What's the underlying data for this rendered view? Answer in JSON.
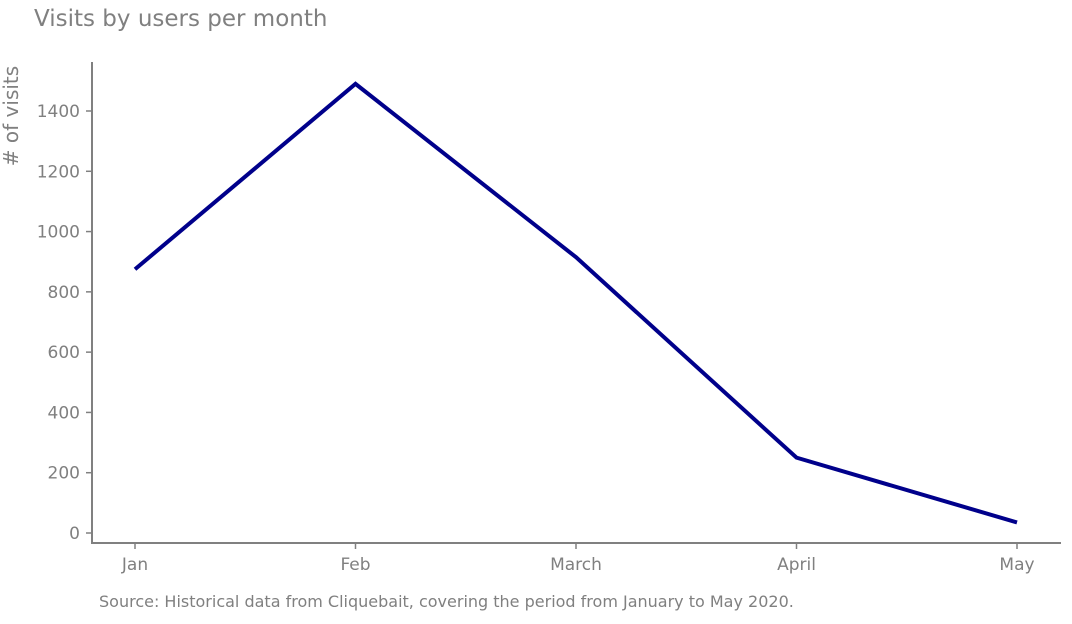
{
  "chart_data": {
    "type": "line",
    "title": "Visits by users per month",
    "xlabel": "",
    "ylabel": "# of visits",
    "categories": [
      "Jan",
      "Feb",
      "March",
      "April",
      "May"
    ],
    "series": [
      {
        "values": [
          875,
          1490,
          915,
          250,
          35
        ]
      }
    ],
    "ylim": [
      -30,
      1560
    ],
    "yticks": [
      "0",
      "200",
      "400",
      "600",
      "800",
      "1000",
      "1200",
      "1400"
    ],
    "grid": false,
    "line_color": "#00008b",
    "axis_color": "#808080",
    "text_color": "#808080"
  },
  "footnote": "Source: Historical data from Cliquebait, covering the period from January to May 2020."
}
